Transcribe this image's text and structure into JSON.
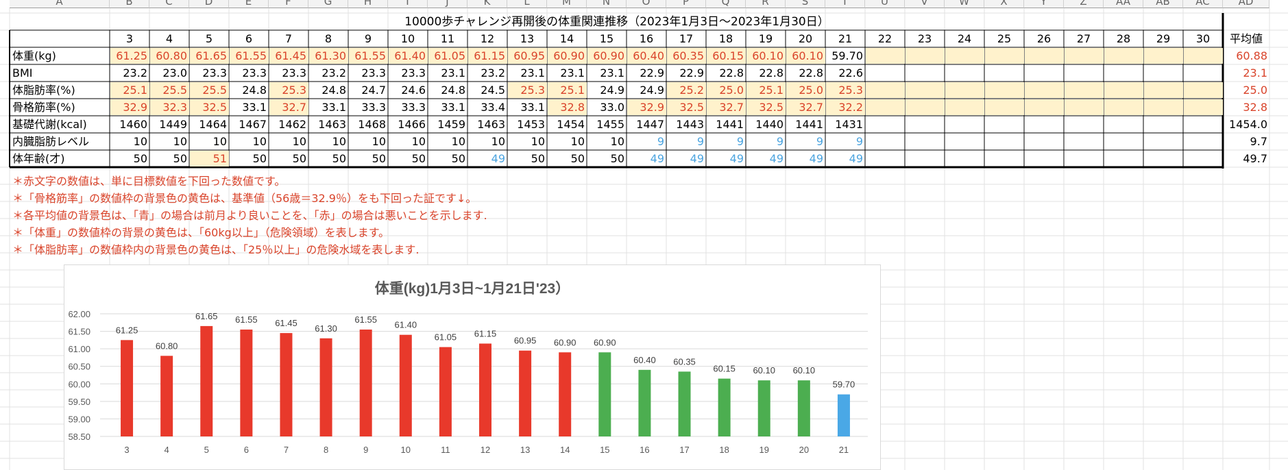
{
  "column_headers": [
    "A",
    "B",
    "C",
    "D",
    "E",
    "F",
    "G",
    "H",
    "I",
    "J",
    "K",
    "L",
    "M",
    "N",
    "O",
    "P",
    "Q",
    "R",
    "S",
    "T",
    "U",
    "V",
    "W",
    "X",
    "Y",
    "Z",
    "AA",
    "AB",
    "AC",
    "AD"
  ],
  "table": {
    "title": "10000歩チャレンジ再開後の体重関連推移（2023年1月3日～2023年1月30日）",
    "days": [
      "3",
      "4",
      "5",
      "6",
      "7",
      "8",
      "9",
      "10",
      "11",
      "12",
      "13",
      "14",
      "15",
      "16",
      "17",
      "18",
      "19",
      "20",
      "21",
      "22",
      "23",
      "24",
      "25",
      "26",
      "27",
      "28",
      "29",
      "30"
    ],
    "avg_header": "平均値",
    "rows": [
      {
        "label": "体重(kg)",
        "values": [
          "61.25",
          "60.80",
          "61.65",
          "61.55",
          "61.45",
          "61.30",
          "61.55",
          "61.40",
          "61.05",
          "61.15",
          "60.95",
          "60.90",
          "60.90",
          "60.40",
          "60.35",
          "60.15",
          "60.10",
          "60.10",
          "59.70"
        ],
        "red": [
          0,
          1,
          2,
          3,
          4,
          5,
          6,
          7,
          8,
          9,
          10,
          11,
          12,
          13,
          14,
          15,
          16,
          17
        ],
        "yellow": [
          0,
          1,
          2,
          3,
          4,
          5,
          6,
          7,
          8,
          9,
          10,
          11,
          12,
          13,
          14,
          15,
          16,
          17,
          19,
          20,
          21,
          22,
          23,
          24,
          25,
          26,
          27
        ],
        "avg": "60.88",
        "avg_color": "red"
      },
      {
        "label": "BMI",
        "values": [
          "23.2",
          "23.0",
          "23.3",
          "23.3",
          "23.3",
          "23.2",
          "23.3",
          "23.3",
          "23.1",
          "23.2",
          "23.1",
          "23.1",
          "23.1",
          "22.9",
          "22.9",
          "22.8",
          "22.8",
          "22.8",
          "22.6"
        ],
        "red": [],
        "yellow": [],
        "avg": "23.1",
        "avg_color": "red"
      },
      {
        "label": "体脂肪率(%)",
        "values": [
          "25.1",
          "25.5",
          "25.5",
          "24.8",
          "25.3",
          "24.8",
          "24.7",
          "24.6",
          "24.8",
          "24.5",
          "25.3",
          "25.1",
          "24.9",
          "24.9",
          "25.2",
          "25.0",
          "25.1",
          "25.0",
          "25.3"
        ],
        "red": [
          0,
          1,
          2,
          4,
          10,
          11,
          14,
          15,
          16,
          17,
          18
        ],
        "yellow": [
          0,
          1,
          2,
          4,
          10,
          11,
          14,
          15,
          16,
          17,
          18,
          19,
          20,
          21,
          22,
          23,
          24,
          25,
          26,
          27
        ],
        "avg": "25.0",
        "avg_color": "red"
      },
      {
        "label": "骨格筋率(%)",
        "values": [
          "32.9",
          "32.3",
          "32.5",
          "33.1",
          "32.7",
          "33.1",
          "33.3",
          "33.3",
          "33.1",
          "33.4",
          "33.1",
          "32.8",
          "33.0",
          "32.9",
          "32.5",
          "32.7",
          "32.5",
          "32.7",
          "32.2"
        ],
        "red": [
          0,
          1,
          2,
          4,
          11,
          13,
          14,
          15,
          16,
          17,
          18
        ],
        "yellow": [
          0,
          1,
          2,
          4,
          11,
          13,
          14,
          15,
          16,
          17,
          18,
          19,
          20,
          21,
          22,
          23,
          24,
          25,
          26,
          27
        ],
        "avg": "32.8",
        "avg_color": "red"
      },
      {
        "label": "基礎代謝(kcal)",
        "values": [
          "1460",
          "1449",
          "1464",
          "1467",
          "1462",
          "1463",
          "1468",
          "1466",
          "1459",
          "1463",
          "1453",
          "1454",
          "1455",
          "1447",
          "1443",
          "1441",
          "1440",
          "1441",
          "1431"
        ],
        "red": [],
        "yellow": [],
        "avg": "1454.0",
        "avg_color": "black"
      },
      {
        "label": "内臓脂肪レベル",
        "values": [
          "10",
          "10",
          "10",
          "10",
          "10",
          "10",
          "10",
          "10",
          "10",
          "10",
          "10",
          "10",
          "10",
          "9",
          "9",
          "9",
          "9",
          "9",
          "9"
        ],
        "blue": [
          13,
          14,
          15,
          16,
          17,
          18
        ],
        "red": [],
        "yellow": [],
        "avg": "9.7",
        "avg_color": "black"
      },
      {
        "label": "体年齢(才)",
        "values": [
          "50",
          "50",
          "51",
          "50",
          "50",
          "50",
          "50",
          "50",
          "50",
          "49",
          "50",
          "50",
          "50",
          "49",
          "49",
          "49",
          "49",
          "49",
          "49"
        ],
        "blue": [
          9,
          13,
          14,
          15,
          16,
          17,
          18
        ],
        "red": [
          2
        ],
        "yellow": [
          2
        ],
        "avg": "49.7",
        "avg_color": "black"
      }
    ]
  },
  "notes": [
    "＊赤文字の数値は、単に目標数値を下回った数値です。",
    "＊「骨格筋率」の数値枠の背景色の黄色は、基準値（56歳＝32.9％）をも下回った証です↓。",
    "＊各平均値の背景色は、「青」の場合は前月より良いことを、「赤」の場合は悪いことを示します.",
    "＊「体重」の数値枠の背景の黄色は、「60kg以上」（危険領域）を表します。",
    "＊「体脂肪率」の数値枠内の背景色の黄色は、「25％以上」の危険水域を表します."
  ],
  "colors": {
    "red": "#e8392b",
    "green": "#4cae50",
    "blue": "#4aa8e6",
    "text_red": "#d9442b",
    "text_blue": "#4aa3df",
    "yellow": "#fff2cc"
  },
  "chart_data": {
    "type": "bar",
    "title": "体重(kg)1月3日~1月21日'23）",
    "categories": [
      "3",
      "4",
      "5",
      "6",
      "7",
      "8",
      "9",
      "10",
      "11",
      "12",
      "13",
      "14",
      "15",
      "16",
      "17",
      "18",
      "19",
      "20",
      "21"
    ],
    "values": [
      61.25,
      60.8,
      61.65,
      61.55,
      61.45,
      61.3,
      61.55,
      61.4,
      61.05,
      61.15,
      60.95,
      60.9,
      60.9,
      60.4,
      60.35,
      60.15,
      60.1,
      60.1,
      59.7
    ],
    "data_labels": [
      "61.25",
      "60.80",
      "61.65",
      "61.55",
      "61.45",
      "61.30",
      "61.55",
      "61.40",
      "61.05",
      "61.15",
      "60.95",
      "60.90",
      "60.90",
      "60.40",
      "60.35",
      "60.15",
      "60.10",
      "60.10",
      "59.70"
    ],
    "bar_colors": [
      "red",
      "red",
      "red",
      "red",
      "red",
      "red",
      "red",
      "red",
      "red",
      "red",
      "red",
      "red",
      "green",
      "green",
      "green",
      "green",
      "green",
      "green",
      "blue"
    ],
    "ylim": [
      58.5,
      62.0
    ],
    "yticks": [
      "62.00",
      "61.50",
      "61.00",
      "60.50",
      "60.00",
      "59.50",
      "59.00",
      "58.50"
    ],
    "xlabel": "",
    "ylabel": "",
    "grid": true,
    "legend": "none"
  }
}
